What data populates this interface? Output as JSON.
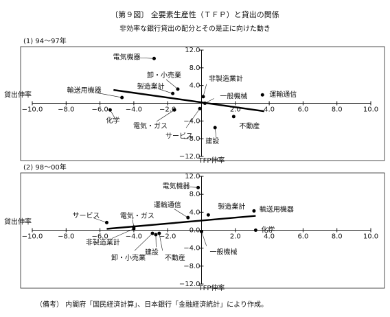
{
  "header": {
    "title": "〔第９図〕 全要素生産性（ＴＦＰ）と貸出の関係",
    "subtitle": "非効率な銀行貸出の配分とその是正に向けた動き"
  },
  "chart_data": [
    {
      "type": "scatter",
      "title": "(1) 94～97年",
      "xlabel": "貸出伸率",
      "ylabel": "TFP伸率",
      "xlim": [
        -10,
        10
      ],
      "ylim": [
        -12,
        12
      ],
      "xticks": [
        {
          "value": -10,
          "label": "−10.0"
        },
        {
          "value": -8,
          "label": "−8.0"
        },
        {
          "value": -6,
          "label": "−6.0"
        },
        {
          "value": -4,
          "label": "−4.0"
        },
        {
          "value": -2,
          "label": "−2.0"
        },
        {
          "value": 2,
          "label": "2.0"
        },
        {
          "value": 4,
          "label": "4.0"
        },
        {
          "value": 6,
          "label": "6.0"
        },
        {
          "value": 8,
          "label": "8.0"
        },
        {
          "value": 10,
          "label": "10.0"
        }
      ],
      "yticks": [
        {
          "value": 12,
          "label": "12.0"
        },
        {
          "value": 8,
          "label": "8.0"
        },
        {
          "value": 4,
          "label": "4.0"
        },
        {
          "value": -4,
          "label": "−4.0"
        },
        {
          "value": -8,
          "label": "−8.0"
        },
        {
          "value": -12,
          "label": "−12.0"
        }
      ],
      "labels": [
        "電気機器",
        "卸・小売業",
        "製造業計",
        "非製造業計",
        "一般機械",
        "運輸通信",
        "輸送用機器",
        "化学",
        "電気・ガス",
        "サービス",
        "不動産",
        "建設"
      ],
      "x": [
        -2.8,
        -1.4,
        -1.7,
        0.1,
        0.2,
        3.6,
        -4.7,
        -5.4,
        -1.6,
        -0.1,
        1.9,
        0.8
      ],
      "y": [
        10.1,
        3.2,
        2.2,
        1.5,
        0.0,
        1.9,
        1.3,
        -1.5,
        -1.5,
        -1.2,
        -3.0,
        -5.5
      ],
      "trend_x": [
        -5.2,
        3.7
      ],
      "trend_y": [
        3.0,
        -1.8
      ]
    },
    {
      "type": "scatter",
      "title": "(2) 98～00年",
      "xlabel": "貸出伸率",
      "ylabel": "TFP伸率",
      "xlim": [
        -10,
        10
      ],
      "ylim": [
        -12,
        12
      ],
      "xticks": [
        {
          "value": -10,
          "label": "−10.0"
        },
        {
          "value": -8,
          "label": "−8.0"
        },
        {
          "value": -6,
          "label": "−6.0"
        },
        {
          "value": -4,
          "label": "−4.0"
        },
        {
          "value": -2,
          "label": "−2.0"
        },
        {
          "value": 2,
          "label": "2.0"
        },
        {
          "value": 4,
          "label": "4.0"
        },
        {
          "value": 6,
          "label": "6.0"
        },
        {
          "value": 8,
          "label": "8.0"
        },
        {
          "value": 10,
          "label": "10.0"
        }
      ],
      "yticks": [
        {
          "value": 12,
          "label": "12.0"
        },
        {
          "value": 8,
          "label": "8.0"
        },
        {
          "value": 4,
          "label": "4.0"
        },
        {
          "value": 0,
          "label": "0.0"
        },
        {
          "value": -4,
          "label": "−4.0"
        },
        {
          "value": -8,
          "label": "−8.0"
        },
        {
          "value": -12,
          "label": "−12.0"
        }
      ],
      "labels": [
        "電気機器",
        "運輸通信",
        "製造業計",
        "輸送用機器",
        "サービス",
        "電気・ガス",
        "非製造業計",
        "卸・小売業",
        "建設",
        "不動産",
        "一般機械",
        "化学"
      ],
      "x": [
        -0.2,
        -0.8,
        0.4,
        3.1,
        -5.6,
        -4.0,
        -4.0,
        -2.9,
        -2.7,
        -2.5,
        0.0,
        3.2
      ],
      "y": [
        9.5,
        2.8,
        3.4,
        4.3,
        1.7,
        0.7,
        0.3,
        -0.7,
        -1.0,
        -0.7,
        -0.3,
        0.0
      ],
      "trend_x": [
        -5.6,
        3.2
      ],
      "trend_y": [
        0.3,
        3.2
      ]
    }
  ],
  "note": "（備考） 内閣府「国民経済計算」、日本銀行「金融経済統計」により作成。"
}
